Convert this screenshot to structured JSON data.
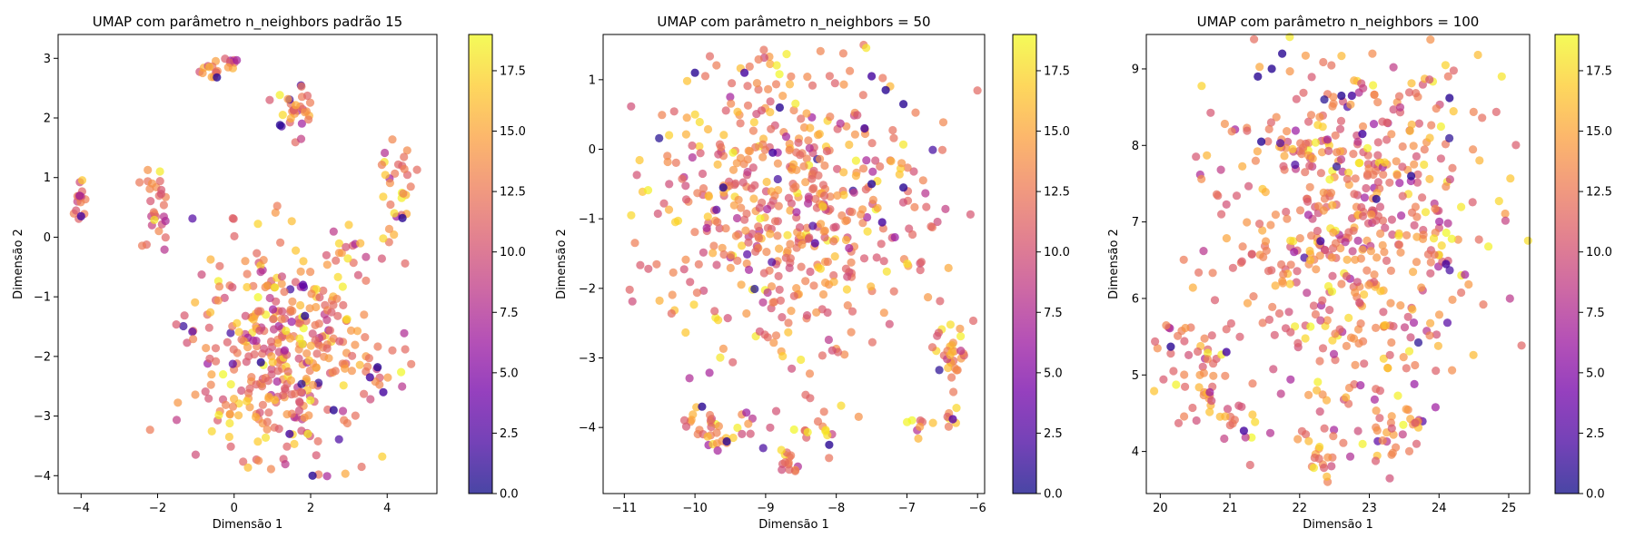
{
  "figure": {
    "background": "#ffffff"
  },
  "colormap": {
    "name": "plasma",
    "alpha": 0.7,
    "stops": [
      "#0d0887",
      "#46039f",
      "#7201a8",
      "#9c179e",
      "#bd3786",
      "#d8576b",
      "#ed7953",
      "#fb9f3a",
      "#fdca26",
      "#f0f921"
    ]
  },
  "chart_data": [
    {
      "type": "scatter",
      "title": "UMAP com parâmetro n_neighbors padrão 15",
      "xlabel": "Dimensão 1",
      "ylabel": "Dimensão 2",
      "xlim": [
        -4.6,
        5.3
      ],
      "ylim": [
        -4.3,
        3.4
      ],
      "xticks": [
        -4,
        -2,
        0,
        2,
        4
      ],
      "yticks": [
        -4,
        -3,
        -2,
        -1,
        0,
        1,
        2,
        3
      ],
      "grid": false,
      "colorbar": {
        "min": 0,
        "max": 19,
        "ticks": [
          0.0,
          2.5,
          5.0,
          7.5,
          10.0,
          12.5,
          15.0,
          17.5
        ]
      },
      "clusters": [
        {
          "cx": -4.05,
          "cy": 0.65,
          "sx": 0.1,
          "sy": 0.2,
          "n": 16
        },
        {
          "cx": -0.6,
          "cy": 2.8,
          "sx": 0.15,
          "sy": 0.1,
          "n": 12
        },
        {
          "cx": -0.05,
          "cy": 2.95,
          "sx": 0.1,
          "sy": 0.08,
          "n": 8
        },
        {
          "cx": 1.6,
          "cy": 2.1,
          "sx": 0.3,
          "sy": 0.25,
          "n": 30
        },
        {
          "cx": -2.1,
          "cy": 0.6,
          "sx": 0.2,
          "sy": 0.35,
          "n": 28
        },
        {
          "cx": 4.3,
          "cy": 0.9,
          "sx": 0.25,
          "sy": 0.45,
          "n": 28
        },
        {
          "cx": 3.1,
          "cy": -0.1,
          "sx": 0.4,
          "sy": 0.2,
          "n": 16
        },
        {
          "cx": 1.3,
          "cy": -2.05,
          "sx": 1.25,
          "sy": 0.95,
          "n": 380
        }
      ],
      "special_points": [
        [
          -0.45,
          2.68,
          1
        ],
        [
          1.2,
          1.88,
          1
        ],
        [
          -4.0,
          0.35,
          2
        ],
        [
          4.4,
          0.32,
          1
        ],
        [
          1.85,
          -1.32,
          1
        ],
        [
          3.75,
          -2.18,
          1
        ],
        [
          3.55,
          -2.35,
          2
        ],
        [
          0.7,
          -2.1,
          1
        ],
        [
          1.45,
          -3.3,
          2
        ],
        [
          2.6,
          -2.9,
          1
        ],
        [
          3.9,
          -2.6,
          2
        ],
        [
          2.05,
          -4.0,
          1
        ],
        [
          1.8,
          -0.8,
          3
        ]
      ],
      "seed": 15
    },
    {
      "type": "scatter",
      "title": "UMAP com parâmetro n_neighbors = 50",
      "xlabel": "Dimensão 1",
      "ylabel": "Dimensão 2",
      "xlim": [
        -11.3,
        -5.9
      ],
      "ylim": [
        -4.95,
        1.65
      ],
      "xticks": [
        -11,
        -10,
        -9,
        -8,
        -7,
        -6
      ],
      "yticks": [
        -4,
        -3,
        -2,
        -1,
        0,
        1
      ],
      "grid": false,
      "colorbar": {
        "min": 0,
        "max": 19,
        "ticks": [
          0.0,
          2.5,
          5.0,
          7.5,
          10.0,
          12.5,
          15.0,
          17.5
        ]
      },
      "clusters": [
        {
          "cx": -8.6,
          "cy": -0.9,
          "sx": 1.0,
          "sy": 1.05,
          "n": 520
        },
        {
          "cx": -9.8,
          "cy": -3.95,
          "sx": 0.3,
          "sy": 0.22,
          "n": 35
        },
        {
          "cx": -8.7,
          "cy": -4.5,
          "sx": 0.12,
          "sy": 0.1,
          "n": 14
        },
        {
          "cx": -8.2,
          "cy": -4.05,
          "sx": 0.25,
          "sy": 0.2,
          "n": 14
        },
        {
          "cx": -6.35,
          "cy": -2.9,
          "sx": 0.18,
          "sy": 0.3,
          "n": 34
        },
        {
          "cx": -6.85,
          "cy": -4.05,
          "sx": 0.15,
          "sy": 0.12,
          "n": 8
        },
        {
          "cx": -6.4,
          "cy": -3.9,
          "sx": 0.1,
          "sy": 0.08,
          "n": 5
        }
      ],
      "special_points": [
        [
          -10.0,
          1.1,
          1
        ],
        [
          -9.3,
          1.1,
          2
        ],
        [
          -8.8,
          0.6,
          1
        ],
        [
          -7.5,
          1.05,
          2
        ],
        [
          -7.3,
          0.85,
          1
        ],
        [
          -7.05,
          0.65,
          1
        ],
        [
          -8.9,
          -0.05,
          2
        ],
        [
          -9.6,
          -0.55,
          1
        ],
        [
          -7.5,
          -0.5,
          1
        ],
        [
          -7.05,
          -0.55,
          1
        ],
        [
          -7.35,
          -1.05,
          2
        ],
        [
          -8.3,
          -1.35,
          3
        ],
        [
          -9.55,
          -4.2,
          1
        ],
        [
          -8.1,
          -4.25,
          1
        ],
        [
          -9.9,
          -3.7,
          1
        ],
        [
          -6.35,
          -3.88,
          3
        ],
        [
          -7.6,
          0.3,
          2
        ]
      ],
      "seed": 50
    },
    {
      "type": "scatter",
      "title": "UMAP com parâmetro n_neighbors = 100",
      "xlabel": "Dimensão 1",
      "ylabel": "Dimensão 2",
      "xlim": [
        19.8,
        25.3
      ],
      "ylim": [
        3.45,
        9.45
      ],
      "xticks": [
        20,
        21,
        22,
        23,
        24,
        25
      ],
      "yticks": [
        4,
        5,
        6,
        7,
        8,
        9
      ],
      "grid": false,
      "colorbar": {
        "min": 0,
        "max": 19,
        "ticks": [
          0.0,
          2.5,
          5.0,
          7.5,
          10.0,
          12.5,
          15.0,
          17.5
        ]
      },
      "clusters": [
        {
          "cx": 22.8,
          "cy": 7.0,
          "sx": 0.95,
          "sy": 1.2,
          "n": 560
        },
        {
          "cx": 20.5,
          "cy": 5.4,
          "sx": 0.35,
          "sy": 0.35,
          "n": 40
        },
        {
          "cx": 20.6,
          "cy": 4.6,
          "sx": 0.2,
          "sy": 0.15,
          "n": 14
        },
        {
          "cx": 21.2,
          "cy": 4.35,
          "sx": 0.2,
          "sy": 0.15,
          "n": 10
        },
        {
          "cx": 22.25,
          "cy": 4.05,
          "sx": 0.2,
          "sy": 0.2,
          "n": 14
        },
        {
          "cx": 22.3,
          "cy": 3.8,
          "sx": 0.1,
          "sy": 0.08,
          "n": 6
        },
        {
          "cx": 23.3,
          "cy": 4.3,
          "sx": 0.25,
          "sy": 0.2,
          "n": 26
        }
      ],
      "special_points": [
        [
          21.4,
          8.9,
          1
        ],
        [
          21.6,
          9.0,
          1
        ],
        [
          21.75,
          9.2,
          1
        ],
        [
          22.6,
          8.65,
          1
        ],
        [
          22.75,
          8.65,
          2
        ],
        [
          24.15,
          8.62,
          1
        ],
        [
          21.45,
          8.05,
          1
        ],
        [
          23.1,
          7.3,
          1
        ],
        [
          23.6,
          7.6,
          1
        ],
        [
          22.3,
          6.75,
          2
        ],
        [
          24.1,
          6.45,
          2
        ],
        [
          20.15,
          5.37,
          1
        ],
        [
          21.2,
          4.27,
          2
        ],
        [
          20.95,
          5.3,
          2
        ],
        [
          22.9,
          8.15,
          2
        ]
      ],
      "seed": 100
    }
  ]
}
